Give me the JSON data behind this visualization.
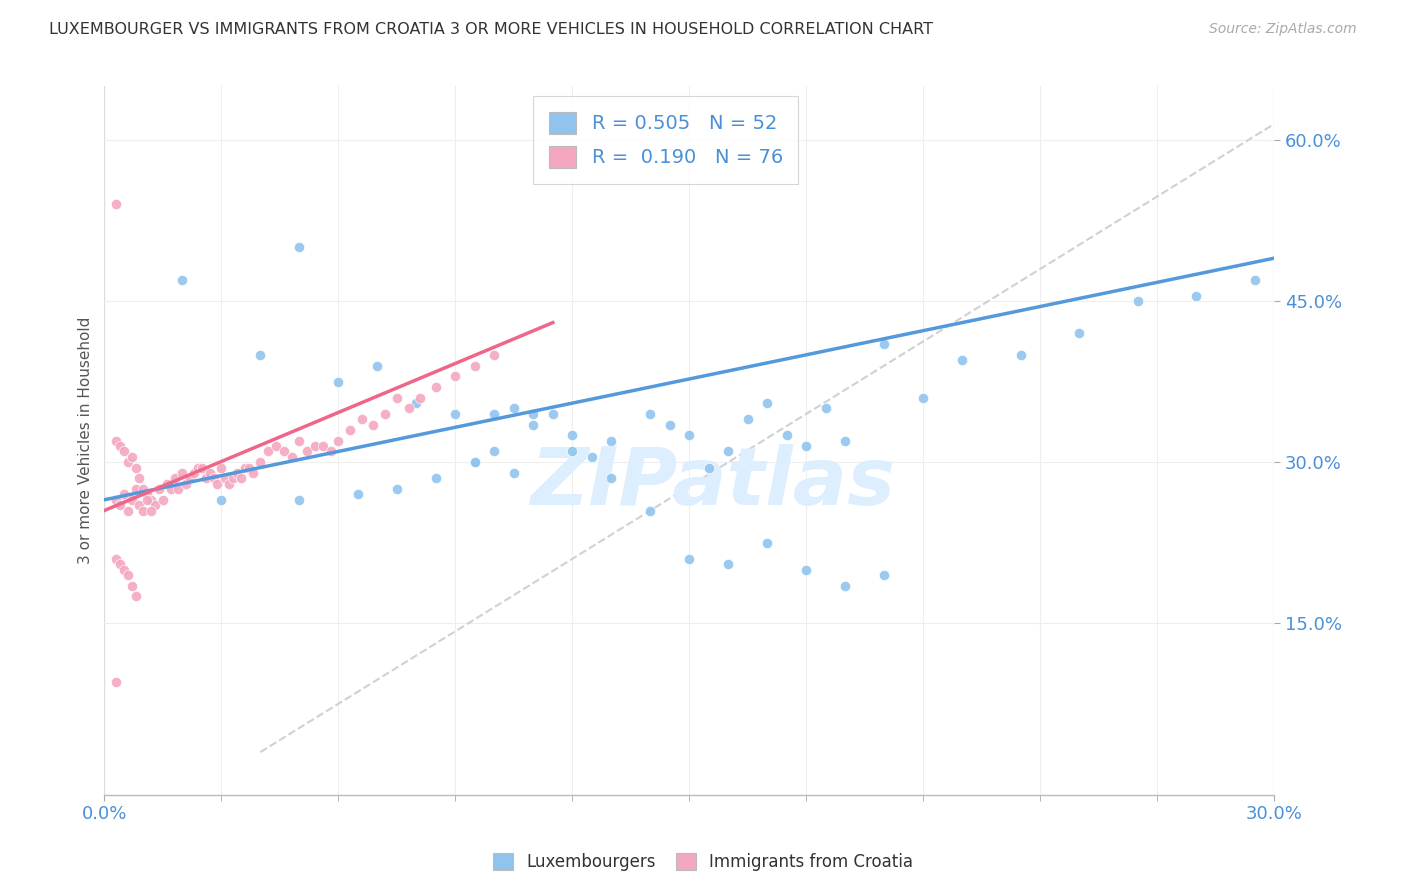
{
  "title": "LUXEMBOURGER VS IMMIGRANTS FROM CROATIA 3 OR MORE VEHICLES IN HOUSEHOLD CORRELATION CHART",
  "source": "Source: ZipAtlas.com",
  "ylabel": "3 or more Vehicles in Household",
  "xlim": [
    0.0,
    0.3
  ],
  "ylim": [
    -0.01,
    0.65
  ],
  "yticks": [
    0.15,
    0.3,
    0.45,
    0.6
  ],
  "ytick_labels": [
    "15.0%",
    "30.0%",
    "45.0%",
    "60.0%"
  ],
  "xtick_left": "0.0%",
  "xtick_right": "30.0%",
  "legend_R_blue": "0.505",
  "legend_N_blue": "52",
  "legend_R_pink": "0.190",
  "legend_N_pink": "76",
  "blue_color": "#90C4EE",
  "pink_color": "#F4A8C0",
  "blue_line_color": "#5599DD",
  "pink_line_color": "#EE6688",
  "ref_line_color": "#CCCCCC",
  "watermark_text": "ZIPatlas",
  "watermark_color": "#DDEEFF",
  "blue_line_x": [
    0.0,
    0.3
  ],
  "blue_line_y": [
    0.265,
    0.49
  ],
  "pink_line_x": [
    0.0,
    0.115
  ],
  "pink_line_y": [
    0.255,
    0.43
  ],
  "ref_line_x": [
    0.04,
    0.3
  ],
  "ref_line_y": [
    0.03,
    0.615
  ],
  "blue_x": [
    0.02,
    0.04,
    0.05,
    0.06,
    0.07,
    0.08,
    0.09,
    0.095,
    0.1,
    0.105,
    0.11,
    0.115,
    0.12,
    0.13,
    0.14,
    0.145,
    0.15,
    0.155,
    0.16,
    0.165,
    0.17,
    0.175,
    0.18,
    0.185,
    0.19,
    0.2,
    0.21,
    0.22,
    0.235,
    0.25,
    0.265,
    0.28,
    0.295,
    0.03,
    0.05,
    0.065,
    0.075,
    0.085,
    0.095,
    0.1,
    0.105,
    0.11,
    0.12,
    0.125,
    0.13,
    0.14,
    0.15,
    0.16,
    0.17,
    0.18,
    0.19,
    0.2
  ],
  "blue_y": [
    0.47,
    0.4,
    0.5,
    0.375,
    0.39,
    0.355,
    0.345,
    0.3,
    0.31,
    0.29,
    0.335,
    0.345,
    0.325,
    0.32,
    0.345,
    0.335,
    0.325,
    0.295,
    0.31,
    0.34,
    0.355,
    0.325,
    0.315,
    0.35,
    0.32,
    0.41,
    0.36,
    0.395,
    0.4,
    0.42,
    0.45,
    0.455,
    0.47,
    0.265,
    0.265,
    0.27,
    0.275,
    0.285,
    0.3,
    0.345,
    0.35,
    0.345,
    0.31,
    0.305,
    0.285,
    0.255,
    0.21,
    0.205,
    0.225,
    0.2,
    0.185,
    0.195
  ],
  "pink_x": [
    0.003,
    0.004,
    0.005,
    0.006,
    0.007,
    0.008,
    0.009,
    0.01,
    0.011,
    0.012,
    0.013,
    0.014,
    0.015,
    0.016,
    0.017,
    0.018,
    0.019,
    0.02,
    0.021,
    0.022,
    0.023,
    0.024,
    0.025,
    0.026,
    0.027,
    0.028,
    0.029,
    0.03,
    0.031,
    0.032,
    0.033,
    0.034,
    0.035,
    0.036,
    0.037,
    0.038,
    0.04,
    0.042,
    0.044,
    0.046,
    0.048,
    0.05,
    0.052,
    0.054,
    0.056,
    0.058,
    0.06,
    0.063,
    0.066,
    0.069,
    0.072,
    0.075,
    0.078,
    0.081,
    0.085,
    0.09,
    0.095,
    0.1,
    0.003,
    0.004,
    0.005,
    0.006,
    0.007,
    0.008,
    0.009,
    0.01,
    0.011,
    0.012,
    0.003,
    0.004,
    0.005,
    0.006,
    0.007,
    0.008,
    0.003,
    0.003
  ],
  "pink_y": [
    0.265,
    0.26,
    0.27,
    0.255,
    0.265,
    0.275,
    0.26,
    0.255,
    0.27,
    0.265,
    0.26,
    0.275,
    0.265,
    0.28,
    0.275,
    0.285,
    0.275,
    0.29,
    0.28,
    0.285,
    0.29,
    0.295,
    0.295,
    0.285,
    0.29,
    0.285,
    0.28,
    0.295,
    0.285,
    0.28,
    0.285,
    0.29,
    0.285,
    0.295,
    0.295,
    0.29,
    0.3,
    0.31,
    0.315,
    0.31,
    0.305,
    0.32,
    0.31,
    0.315,
    0.315,
    0.31,
    0.32,
    0.33,
    0.34,
    0.335,
    0.345,
    0.36,
    0.35,
    0.36,
    0.37,
    0.38,
    0.39,
    0.4,
    0.32,
    0.315,
    0.31,
    0.3,
    0.305,
    0.295,
    0.285,
    0.275,
    0.265,
    0.255,
    0.21,
    0.205,
    0.2,
    0.195,
    0.185,
    0.175,
    0.095,
    0.54
  ]
}
